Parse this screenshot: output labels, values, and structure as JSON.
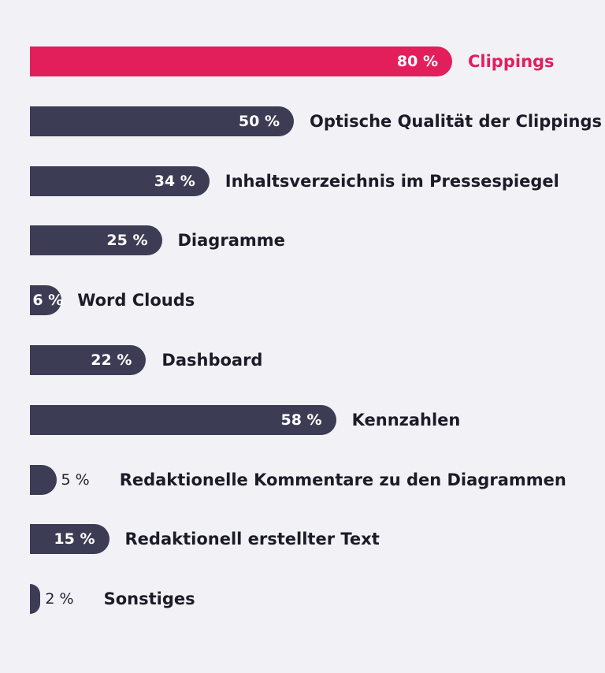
{
  "chart_data": {
    "type": "bar",
    "orientation": "horizontal",
    "categories": [
      "Clippings",
      "Optische Qualität der Clippings",
      "Inhaltsverzeichnis im Pressespiegel",
      "Diagramme",
      "Word Clouds",
      "Dashboard",
      "Kennzahlen",
      "Redaktionelle Kommentare zu den Diagrammen",
      "Redaktionell erstellter Text",
      "Sonstiges"
    ],
    "values": [
      80,
      50,
      34,
      25,
      6,
      22,
      58,
      5,
      15,
      2
    ],
    "value_labels": [
      "80 %",
      "50 %",
      "34 %",
      "25 %",
      "6 %",
      "22 %",
      "58 %",
      "5 %",
      "15 %",
      "2 %"
    ],
    "highlight_index": 0,
    "colors": {
      "highlight": "#e21e5b",
      "default": "#3d3c55",
      "background": "#f2f1f6"
    },
    "xlim": [
      0,
      100
    ],
    "grid": false,
    "legend": "none"
  }
}
